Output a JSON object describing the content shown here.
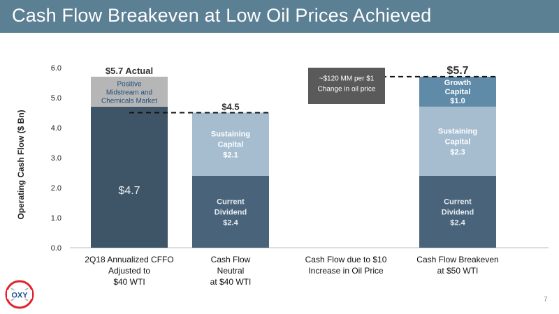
{
  "title": "Cash Flow Breakeven at Low Oil Prices Achieved",
  "page_number": "7",
  "logo_text": "OXY",
  "note_box": "~$120 MM per $1\nChange in oil price",
  "colors": {
    "title_bar": "#5b7f93",
    "dark_bar": "#3e5568",
    "dividend": "#48637a",
    "sustaining": "#a6bdd0",
    "growth": "#5f8ba9",
    "positive": "#b6b6b6",
    "note_box": "#5a5a5a",
    "logo_red": "#e2222a"
  },
  "chart_data": {
    "type": "bar",
    "stacked": true,
    "ylabel": "Operating Cash Flow ($ Bn)",
    "ylim": [
      0,
      6
    ],
    "yticks": [
      "0.0",
      "1.0",
      "2.0",
      "3.0",
      "4.0",
      "5.0",
      "6.0"
    ],
    "grid": false,
    "categories": [
      "2Q18 Annualized CFFO\nAdjusted to\n$40 WTI",
      "Cash Flow\nNeutral\nat $40 WTI",
      "Cash Flow due to $10\nIncrease in Oil Price",
      "Cash Flow Breakeven\nat $50 WTI"
    ],
    "bars": [
      {
        "total_label": "$5.7 Actual",
        "segments": [
          {
            "bottom": 0,
            "value": 4.7,
            "label": "$4.7",
            "style": "dark"
          },
          {
            "bottom": 4.7,
            "value": 1.0,
            "label": "Positive\nMidstream and\nChemicals Market",
            "style": "positive"
          }
        ]
      },
      {
        "total_label": "$4.5",
        "segments": [
          {
            "bottom": 0,
            "value": 2.4,
            "label": "Current\nDividend\n$2.4",
            "style": "dividend"
          },
          {
            "bottom": 2.4,
            "value": 2.1,
            "label": "Sustaining\nCapital\n$2.1",
            "style": "sustaining"
          }
        ]
      },
      {
        "total_label": "",
        "segments": []
      },
      {
        "total_label": "$5.7",
        "segments": [
          {
            "bottom": 0,
            "value": 2.4,
            "label": "Current\nDividend\n$2.4",
            "style": "dividend"
          },
          {
            "bottom": 2.4,
            "value": 2.3,
            "label": "Sustaining\nCapital\n$2.3",
            "style": "sustaining"
          },
          {
            "bottom": 4.7,
            "value": 1.0,
            "label": "Growth\nCapital\n$1.0",
            "style": "growth"
          }
        ]
      }
    ],
    "reference_lines": [
      {
        "y": 4.5,
        "from_category": 0,
        "to_category": 1
      },
      {
        "y": 5.7,
        "from_category": 2,
        "to_category": 3
      }
    ]
  }
}
